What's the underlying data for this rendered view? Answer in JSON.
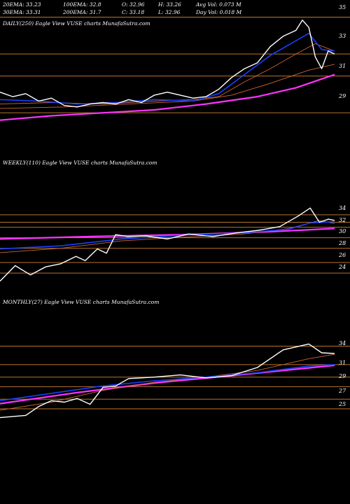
{
  "header": {
    "row1": [
      "20EMA: 33.23",
      "100EMA: 32.8",
      "O: 32.96",
      "H: 33.26",
      "Avg Vol: 0.073 M"
    ],
    "row2": [
      "30EMA: 33.31",
      "200EMA: 31.7",
      "C: 33.18",
      "L: 32.96",
      "Day Vol: 0.018 M"
    ]
  },
  "colors": {
    "background": "#000000",
    "price": "#ffffff",
    "ema_fast": "#1a3fff",
    "ema_long": "#ff33ff",
    "ema_mid": "#cc6633",
    "gridline": "#b8742e"
  },
  "chart_data": [
    {
      "type": "line",
      "title": "DAILY(250) Eagle  View  VUSE charts MunafaSutra.com",
      "y_ticks": [
        "35",
        "33",
        "31",
        "29"
      ],
      "ylim": [
        28.2,
        36.0
      ],
      "x_count": 250,
      "grid": "horizontal",
      "series": [
        {
          "role": "price",
          "points": [
            [
              0,
              30.4
            ],
            [
              10,
              30.1
            ],
            [
              20,
              30.3
            ],
            [
              30,
              29.8
            ],
            [
              40,
              30.0
            ],
            [
              50,
              29.5
            ],
            [
              60,
              29.4
            ],
            [
              70,
              29.6
            ],
            [
              80,
              29.7
            ],
            [
              90,
              29.6
            ],
            [
              100,
              29.9
            ],
            [
              110,
              29.7
            ],
            [
              120,
              30.2
            ],
            [
              130,
              30.4
            ],
            [
              140,
              30.2
            ],
            [
              150,
              30.0
            ],
            [
              160,
              30.1
            ],
            [
              170,
              30.6
            ],
            [
              180,
              31.4
            ],
            [
              190,
              32.0
            ],
            [
              200,
              32.4
            ],
            [
              210,
              33.5
            ],
            [
              220,
              34.2
            ],
            [
              230,
              34.6
            ],
            [
              235,
              35.3
            ],
            [
              240,
              34.8
            ],
            [
              245,
              32.8
            ],
            [
              250,
              32.0
            ],
            [
              255,
              33.2
            ],
            [
              260,
              33.0
            ]
          ]
        },
        {
          "role": "ema_fast",
          "points": [
            [
              0,
              29.9
            ],
            [
              30,
              29.8
            ],
            [
              60,
              29.6
            ],
            [
              90,
              29.7
            ],
            [
              120,
              29.9
            ],
            [
              150,
              29.8
            ],
            [
              170,
              30.3
            ],
            [
              190,
              31.6
            ],
            [
              210,
              32.9
            ],
            [
              230,
              33.9
            ],
            [
              240,
              34.4
            ],
            [
              250,
              33.3
            ],
            [
              260,
              33.2
            ]
          ]
        },
        {
          "role": "ema_mid",
          "points": [
            [
              0,
              29.6
            ],
            [
              40,
              29.7
            ],
            [
              80,
              29.6
            ],
            [
              120,
              29.8
            ],
            [
              150,
              29.9
            ],
            [
              170,
              30.1
            ],
            [
              190,
              31.1
            ],
            [
              210,
              32.0
            ],
            [
              230,
              33.0
            ],
            [
              245,
              33.7
            ],
            [
              260,
              33.2
            ]
          ]
        },
        {
          "role": "ema_mid",
          "points": [
            [
              0,
              29.3
            ],
            [
              50,
              29.4
            ],
            [
              100,
              29.6
            ],
            [
              150,
              29.8
            ],
            [
              180,
              30.2
            ],
            [
              210,
              31.0
            ],
            [
              240,
              31.9
            ],
            [
              260,
              32.3
            ]
          ]
        },
        {
          "role": "ema_long",
          "points": [
            [
              0,
              28.5
            ],
            [
              40,
              28.8
            ],
            [
              80,
              29.0
            ],
            [
              120,
              29.2
            ],
            [
              160,
              29.6
            ],
            [
              200,
              30.1
            ],
            [
              230,
              30.7
            ],
            [
              250,
              31.3
            ],
            [
              260,
              31.6
            ]
          ]
        }
      ],
      "gridlines": [
        35.5,
        33.0,
        31.5,
        29.0
      ]
    },
    {
      "type": "line",
      "title": "WEEKLY(110) Eagle  View  VUSE charts MunafaSutra.com",
      "y_ticks": [
        "34",
        "32",
        "30",
        "28",
        "26",
        "24"
      ],
      "ylim": [
        22.5,
        35.5
      ],
      "x_count": 110,
      "grid": "horizontal",
      "series": [
        {
          "role": "price",
          "points": [
            [
              0,
              23.0
            ],
            [
              5,
              25.5
            ],
            [
              10,
              24.0
            ],
            [
              15,
              25.3
            ],
            [
              20,
              25.8
            ],
            [
              25,
              27.0
            ],
            [
              28,
              26.3
            ],
            [
              32,
              28.2
            ],
            [
              35,
              27.5
            ],
            [
              38,
              30.5
            ],
            [
              42,
              30.2
            ],
            [
              48,
              30.3
            ],
            [
              55,
              29.8
            ],
            [
              62,
              30.6
            ],
            [
              70,
              30.2
            ],
            [
              78,
              30.8
            ],
            [
              85,
              31.2
            ],
            [
              92,
              31.8
            ],
            [
              98,
              33.5
            ],
            [
              102,
              34.8
            ],
            [
              105,
              32.5
            ],
            [
              108,
              33.0
            ],
            [
              110,
              32.8
            ]
          ]
        },
        {
          "role": "ema_fast",
          "points": [
            [
              0,
              28.2
            ],
            [
              20,
              28.7
            ],
            [
              40,
              29.8
            ],
            [
              60,
              30.4
            ],
            [
              80,
              30.8
            ],
            [
              95,
              31.4
            ],
            [
              102,
              32.4
            ],
            [
              110,
              32.6
            ]
          ]
        },
        {
          "role": "ema_mid",
          "points": [
            [
              0,
              27.6
            ],
            [
              20,
              28.3
            ],
            [
              40,
              29.5
            ],
            [
              60,
              30.1
            ],
            [
              80,
              30.6
            ],
            [
              95,
              31.5
            ],
            [
              105,
              32.8
            ],
            [
              110,
              32.3
            ]
          ]
        },
        {
          "role": "ema_long",
          "points": [
            [
              0,
              29.8
            ],
            [
              30,
              30.2
            ],
            [
              60,
              30.5
            ],
            [
              90,
              31.0
            ],
            [
              110,
              31.5
            ]
          ]
        }
      ],
      "gridlines": [
        33.7,
        32.5,
        31.7,
        30.0,
        28.3,
        26.0,
        24.3
      ]
    },
    {
      "type": "line",
      "title": "MONTHLY(27) Eagle  View  VUSE charts MunafaSutra.com",
      "y_ticks": [
        "34",
        "31",
        "29",
        "27",
        "25"
      ],
      "ylim": [
        23.5,
        35.0
      ],
      "x_count": 27,
      "grid": "horizontal",
      "series": [
        {
          "role": "price",
          "points": [
            [
              0,
              24.3
            ],
            [
              2,
              24.6
            ],
            [
              3,
              25.8
            ],
            [
              4,
              26.6
            ],
            [
              5,
              26.4
            ],
            [
              6,
              26.9
            ],
            [
              7,
              26.1
            ],
            [
              8,
              28.4
            ],
            [
              9,
              28.6
            ],
            [
              10,
              29.6
            ],
            [
              11,
              29.7
            ],
            [
              12,
              29.8
            ],
            [
              14,
              30.1
            ],
            [
              16,
              29.7
            ],
            [
              18,
              30.0
            ],
            [
              20,
              31.1
            ],
            [
              22,
              33.5
            ],
            [
              24,
              34.3
            ],
            [
              25,
              33.1
            ],
            [
              26,
              33.0
            ]
          ]
        },
        {
          "role": "ema_fast",
          "points": [
            [
              0,
              26.6
            ],
            [
              4,
              27.6
            ],
            [
              8,
              28.6
            ],
            [
              12,
              29.3
            ],
            [
              16,
              29.8
            ],
            [
              20,
              30.4
            ],
            [
              24,
              31.3
            ],
            [
              26,
              31.5
            ]
          ]
        },
        {
          "role": "ema_mid",
          "points": [
            [
              0,
              25.3
            ],
            [
              4,
              26.4
            ],
            [
              8,
              28.0
            ],
            [
              12,
              29.1
            ],
            [
              16,
              29.8
            ],
            [
              20,
              30.7
            ],
            [
              24,
              32.3
            ],
            [
              26,
              32.9
            ]
          ]
        },
        {
          "role": "ema_long",
          "points": [
            [
              0,
              26.2
            ],
            [
              6,
              27.7
            ],
            [
              12,
              29.0
            ],
            [
              18,
              30.0
            ],
            [
              26,
              31.4
            ]
          ]
        }
      ],
      "gridlines": [
        34.0,
        31.5,
        29.8,
        28.5,
        26.8,
        25.5
      ]
    }
  ]
}
